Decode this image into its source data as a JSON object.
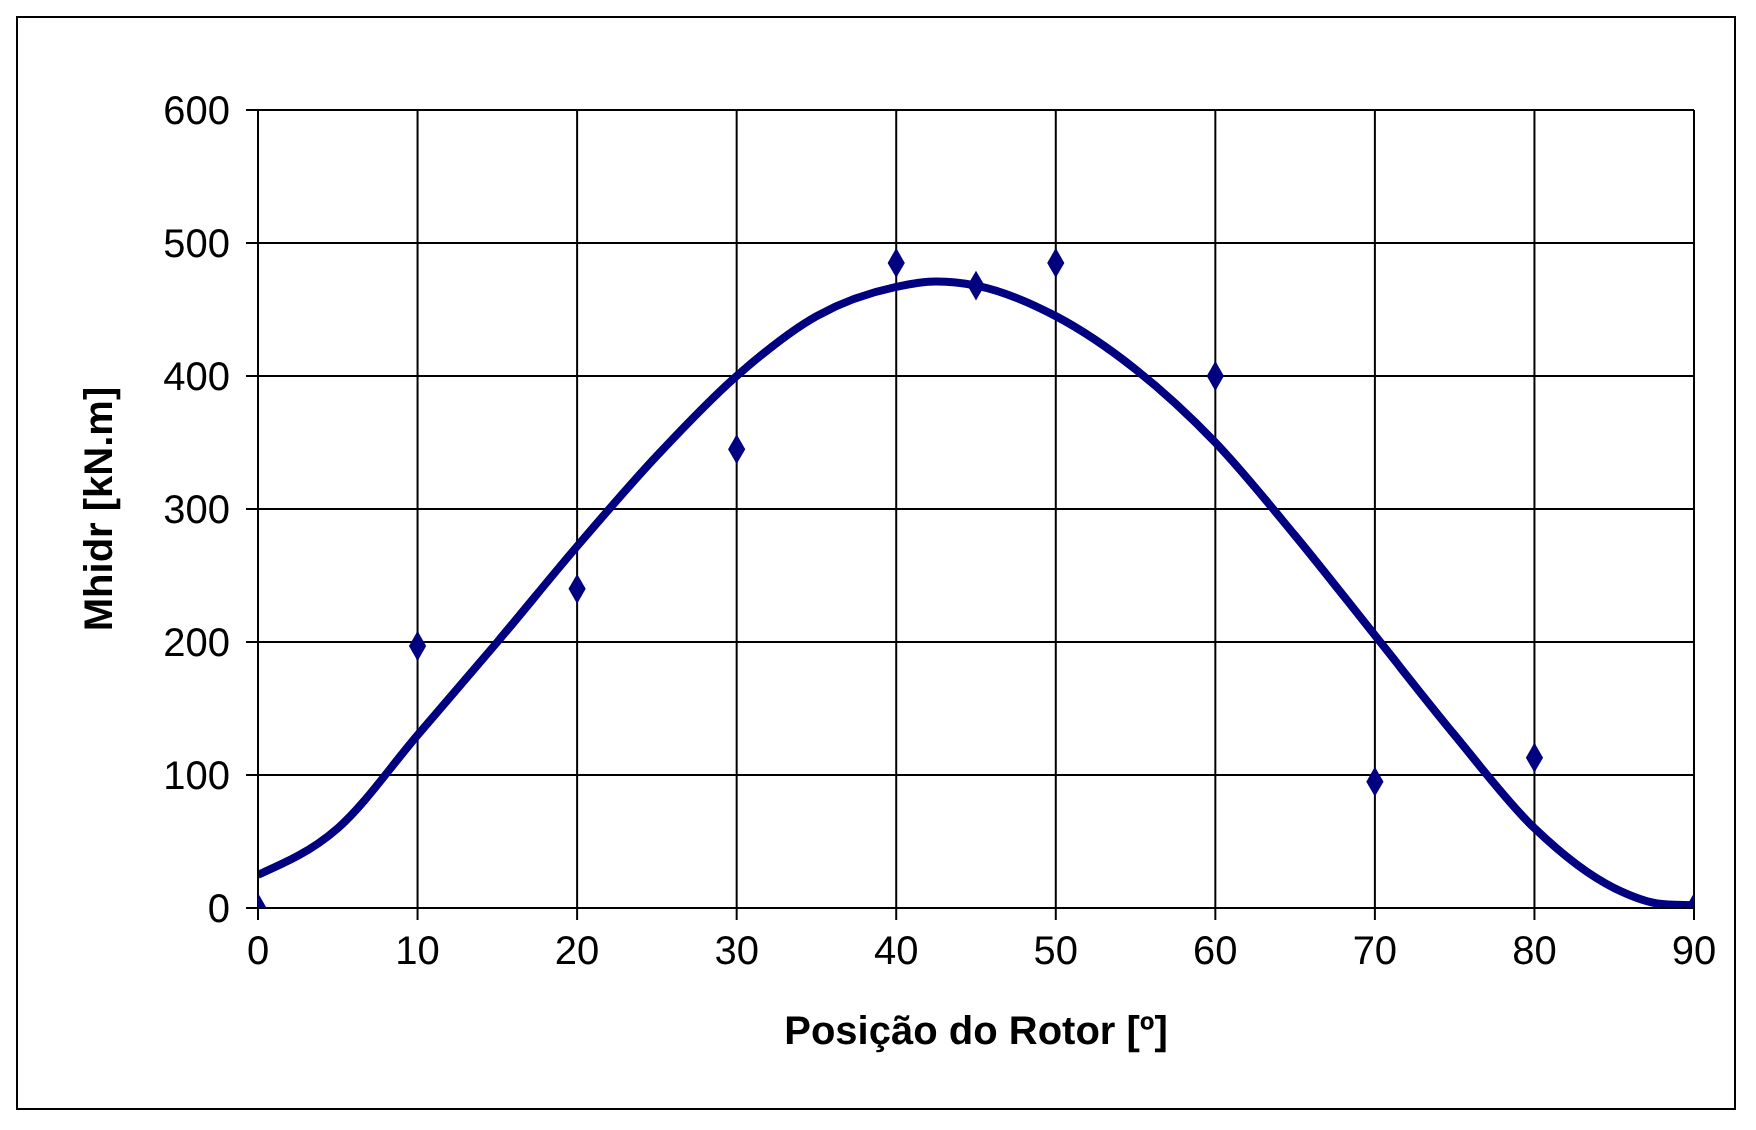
{
  "chart_data": {
    "type": "scatter",
    "xlabel": "Posição do Rotor [º]",
    "ylabel": "Mhidr [kN.m]",
    "xlim": [
      0,
      90
    ],
    "xticks": [
      0,
      10,
      20,
      30,
      40,
      50,
      60,
      70,
      80,
      90
    ],
    "ylim": [
      0,
      600
    ],
    "yticks": [
      0,
      100,
      200,
      300,
      400,
      500,
      600
    ],
    "grid": true,
    "series": [
      {
        "color": "#000080",
        "marker": "diamond",
        "x": [
          0,
          10,
          20,
          30,
          40,
          45,
          50,
          60,
          70,
          80,
          90
        ],
        "values": [
          0,
          197,
          240,
          345,
          485,
          468,
          485,
          400,
          95,
          113,
          0
        ]
      },
      {
        "type": "line",
        "color": "#000080",
        "marker": "none",
        "x": [
          0,
          5,
          10,
          15,
          20,
          25,
          30,
          35,
          40,
          42.5,
          45,
          50,
          55,
          60,
          65,
          70,
          75,
          80,
          85,
          88,
          90
        ],
        "values": [
          25,
          60,
          130,
          200,
          272,
          340,
          400,
          445,
          467,
          471,
          468,
          445,
          405,
          350,
          280,
          205,
          130,
          60,
          15,
          3,
          2
        ]
      }
    ]
  }
}
